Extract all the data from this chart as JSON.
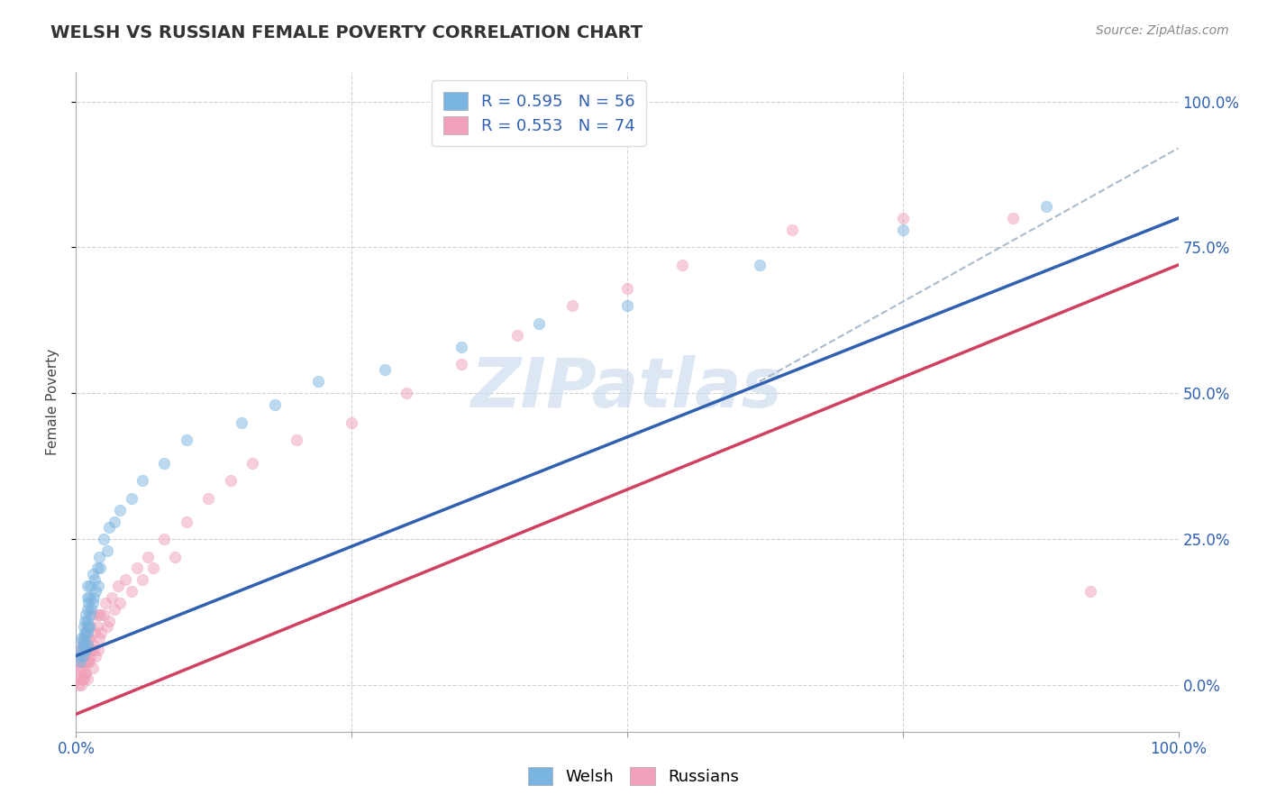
{
  "title": "WELSH VS RUSSIAN FEMALE POVERTY CORRELATION CHART",
  "source": "Source: ZipAtlas.com",
  "ylabel": "Female Poverty",
  "welsh_R": 0.595,
  "welsh_N": 56,
  "russian_R": 0.553,
  "russian_N": 74,
  "welsh_color": "#7ab4e0",
  "russian_color": "#f0a0b8",
  "welsh_line_color": "#3060b0",
  "russian_line_color": "#d04060",
  "background_color": "#ffffff",
  "watermark": "ZIPatlas",
  "xlim": [
    0,
    1.0
  ],
  "ylim": [
    -0.08,
    1.05
  ],
  "ytick_values": [
    0.0,
    0.25,
    0.5,
    0.75,
    1.0
  ],
  "ytick_labels": [
    "0.0%",
    "25.0%",
    "50.0%",
    "75.0%",
    "100.0%"
  ],
  "xtick_positions": [
    0.0,
    0.25,
    0.5,
    0.75,
    1.0
  ],
  "xtick_labels": [
    "0.0%",
    "",
    "",
    "",
    "100.0%"
  ],
  "welsh_line_x0": 0.0,
  "welsh_line_y0": 0.05,
  "welsh_line_x1": 1.0,
  "welsh_line_y1": 0.8,
  "russian_line_x0": 0.0,
  "russian_line_y0": -0.05,
  "russian_line_x1": 1.0,
  "russian_line_y1": 0.72,
  "dash_line_x0": 0.62,
  "dash_line_y0": 0.52,
  "dash_line_x1": 1.0,
  "dash_line_y1": 0.92,
  "welsh_scatter_x": [
    0.003,
    0.004,
    0.005,
    0.005,
    0.006,
    0.006,
    0.007,
    0.007,
    0.007,
    0.008,
    0.008,
    0.008,
    0.009,
    0.009,
    0.009,
    0.01,
    0.01,
    0.01,
    0.01,
    0.01,
    0.01,
    0.011,
    0.011,
    0.012,
    0.012,
    0.013,
    0.013,
    0.014,
    0.015,
    0.015,
    0.016,
    0.017,
    0.018,
    0.019,
    0.02,
    0.021,
    0.022,
    0.025,
    0.028,
    0.03,
    0.035,
    0.04,
    0.05,
    0.06,
    0.08,
    0.1,
    0.15,
    0.18,
    0.22,
    0.28,
    0.35,
    0.42,
    0.5,
    0.62,
    0.75,
    0.88
  ],
  "welsh_scatter_y": [
    0.05,
    0.04,
    0.06,
    0.08,
    0.05,
    0.07,
    0.06,
    0.08,
    0.1,
    0.07,
    0.09,
    0.11,
    0.06,
    0.09,
    0.12,
    0.07,
    0.09,
    0.11,
    0.13,
    0.15,
    0.17,
    0.1,
    0.14,
    0.1,
    0.15,
    0.12,
    0.17,
    0.13,
    0.14,
    0.19,
    0.15,
    0.18,
    0.16,
    0.2,
    0.17,
    0.22,
    0.2,
    0.25,
    0.23,
    0.27,
    0.28,
    0.3,
    0.32,
    0.35,
    0.38,
    0.42,
    0.45,
    0.48,
    0.52,
    0.54,
    0.58,
    0.62,
    0.65,
    0.72,
    0.78,
    0.82
  ],
  "russian_scatter_x": [
    0.002,
    0.003,
    0.003,
    0.004,
    0.004,
    0.005,
    0.005,
    0.005,
    0.006,
    0.006,
    0.006,
    0.007,
    0.007,
    0.007,
    0.008,
    0.008,
    0.008,
    0.009,
    0.009,
    0.01,
    0.01,
    0.01,
    0.01,
    0.011,
    0.011,
    0.012,
    0.012,
    0.013,
    0.013,
    0.014,
    0.015,
    0.015,
    0.015,
    0.016,
    0.017,
    0.018,
    0.019,
    0.02,
    0.02,
    0.021,
    0.022,
    0.023,
    0.025,
    0.027,
    0.028,
    0.03,
    0.032,
    0.035,
    0.038,
    0.04,
    0.045,
    0.05,
    0.055,
    0.06,
    0.065,
    0.07,
    0.08,
    0.09,
    0.1,
    0.12,
    0.14,
    0.16,
    0.2,
    0.25,
    0.3,
    0.35,
    0.4,
    0.45,
    0.5,
    0.55,
    0.65,
    0.75,
    0.85,
    0.92
  ],
  "russian_scatter_y": [
    0.0,
    0.01,
    0.03,
    0.01,
    0.04,
    0.0,
    0.03,
    0.06,
    0.01,
    0.04,
    0.07,
    0.01,
    0.04,
    0.07,
    0.02,
    0.05,
    0.08,
    0.02,
    0.07,
    0.01,
    0.04,
    0.07,
    0.1,
    0.04,
    0.08,
    0.04,
    0.08,
    0.05,
    0.1,
    0.06,
    0.03,
    0.07,
    0.12,
    0.06,
    0.09,
    0.05,
    0.1,
    0.06,
    0.12,
    0.08,
    0.12,
    0.09,
    0.12,
    0.14,
    0.1,
    0.11,
    0.15,
    0.13,
    0.17,
    0.14,
    0.18,
    0.16,
    0.2,
    0.18,
    0.22,
    0.2,
    0.25,
    0.22,
    0.28,
    0.32,
    0.35,
    0.38,
    0.42,
    0.45,
    0.5,
    0.55,
    0.6,
    0.65,
    0.68,
    0.72,
    0.78,
    0.8,
    0.8,
    0.16
  ],
  "dot_size": 80,
  "dot_alpha": 0.5,
  "dot_size_big": 400,
  "grid_color": "#cccccc",
  "grid_style": "--",
  "tick_color": "#3060b0",
  "title_fontsize": 14,
  "source_fontsize": 10,
  "legend_fontsize": 13,
  "axis_label_fontsize": 11,
  "tick_fontsize": 12
}
